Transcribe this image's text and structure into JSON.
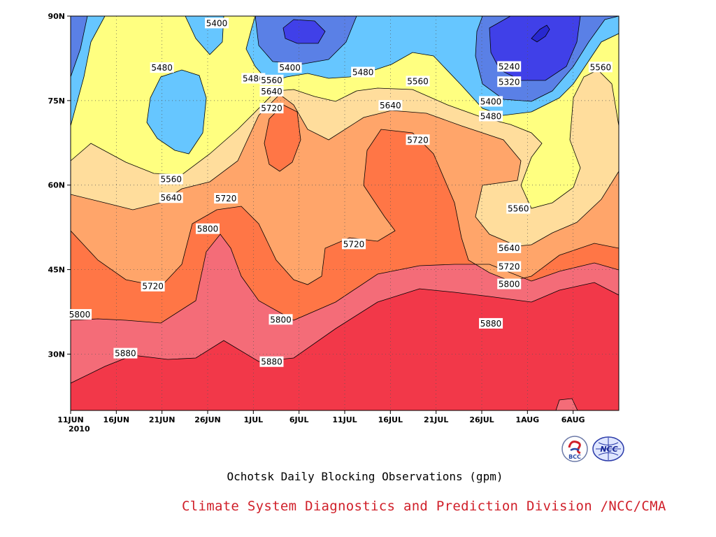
{
  "chart_data": {
    "type": "contour",
    "title": "",
    "subtitle": "Ochotsk Daily Blocking Observations (gpm)",
    "footer": "Climate System Diagnostics and Prediction Division /NCC/CMA",
    "year_label": "2010",
    "x_ticks": [
      "11JUN",
      "16JUN",
      "21JUN",
      "26JUN",
      "1JUL",
      "6JUL",
      "11JUL",
      "16JUL",
      "21JUL",
      "26JUL",
      "1AUG",
      "6AUG"
    ],
    "x_range": [
      "2010-06-11",
      "2010-08-10"
    ],
    "y_ticks": [
      "30N",
      "45N",
      "60N",
      "75N",
      "90N"
    ],
    "y_range": [
      20,
      90
    ],
    "grid": true,
    "contour_levels": [
      5240,
      5320,
      5400,
      5480,
      5560,
      5640,
      5720,
      5800,
      5880
    ],
    "band_colors": [
      "#4040e8",
      "#5a80e6",
      "#66c6ff",
      "#ffff80",
      "#ffdd9c",
      "#ffa56a",
      "#ff7646",
      "#f46c78",
      "#f23849"
    ],
    "contour_labels": [
      {
        "text": "5400",
        "x": "2010-06-27",
        "y": 88.7
      },
      {
        "text": "5400",
        "x": "2010-07-05",
        "y": 80.8
      },
      {
        "text": "5240",
        "x": "2010-07-29",
        "y": 81.0
      },
      {
        "text": "5480",
        "x": "2010-06-21",
        "y": 80.8
      },
      {
        "text": "5480",
        "x": "2010-07-01",
        "y": 78.9
      },
      {
        "text": "5480",
        "x": "2010-07-13",
        "y": 80.0
      },
      {
        "text": "5560",
        "x": "2010-07-03",
        "y": 78.6
      },
      {
        "text": "5560",
        "x": "2010-07-19",
        "y": 78.4
      },
      {
        "text": "5560",
        "x": "2010-08-08",
        "y": 80.9
      },
      {
        "text": "5640",
        "x": "2010-07-03",
        "y": 76.6
      },
      {
        "text": "5720",
        "x": "2010-07-03",
        "y": 73.6
      },
      {
        "text": "5320",
        "x": "2010-07-29",
        "y": 78.3
      },
      {
        "text": "5400",
        "x": "2010-07-27",
        "y": 74.8
      },
      {
        "text": "5480",
        "x": "2010-07-27",
        "y": 72.2
      },
      {
        "text": "5640",
        "x": "2010-07-16",
        "y": 74.1
      },
      {
        "text": "5720",
        "x": "2010-07-19",
        "y": 68.0
      },
      {
        "text": "5560",
        "x": "2010-06-22",
        "y": 61.0
      },
      {
        "text": "5640",
        "x": "2010-06-22",
        "y": 57.7
      },
      {
        "text": "5720",
        "x": "2010-06-28",
        "y": 57.6
      },
      {
        "text": "5560",
        "x": "2010-07-30",
        "y": 55.8
      },
      {
        "text": "5800",
        "x": "2010-06-26",
        "y": 52.2
      },
      {
        "text": "5720",
        "x": "2010-07-12",
        "y": 49.5
      },
      {
        "text": "5640",
        "x": "2010-07-29",
        "y": 48.8
      },
      {
        "text": "5720",
        "x": "2010-07-29",
        "y": 45.5
      },
      {
        "text": "5800",
        "x": "2010-07-29",
        "y": 42.4
      },
      {
        "text": "5720",
        "x": "2010-06-20",
        "y": 42.0
      },
      {
        "text": "5800",
        "x": "2010-06-12",
        "y": 37.0
      },
      {
        "text": "5800",
        "x": "2010-07-04",
        "y": 36.1
      },
      {
        "text": "5880",
        "x": "2010-07-27",
        "y": 35.4
      },
      {
        "text": "5880",
        "x": "2010-06-17",
        "y": 30.1
      },
      {
        "text": "5880",
        "x": "2010-07-03",
        "y": 28.6
      }
    ]
  },
  "logos": {
    "left": "BCC",
    "right": "NCC"
  }
}
